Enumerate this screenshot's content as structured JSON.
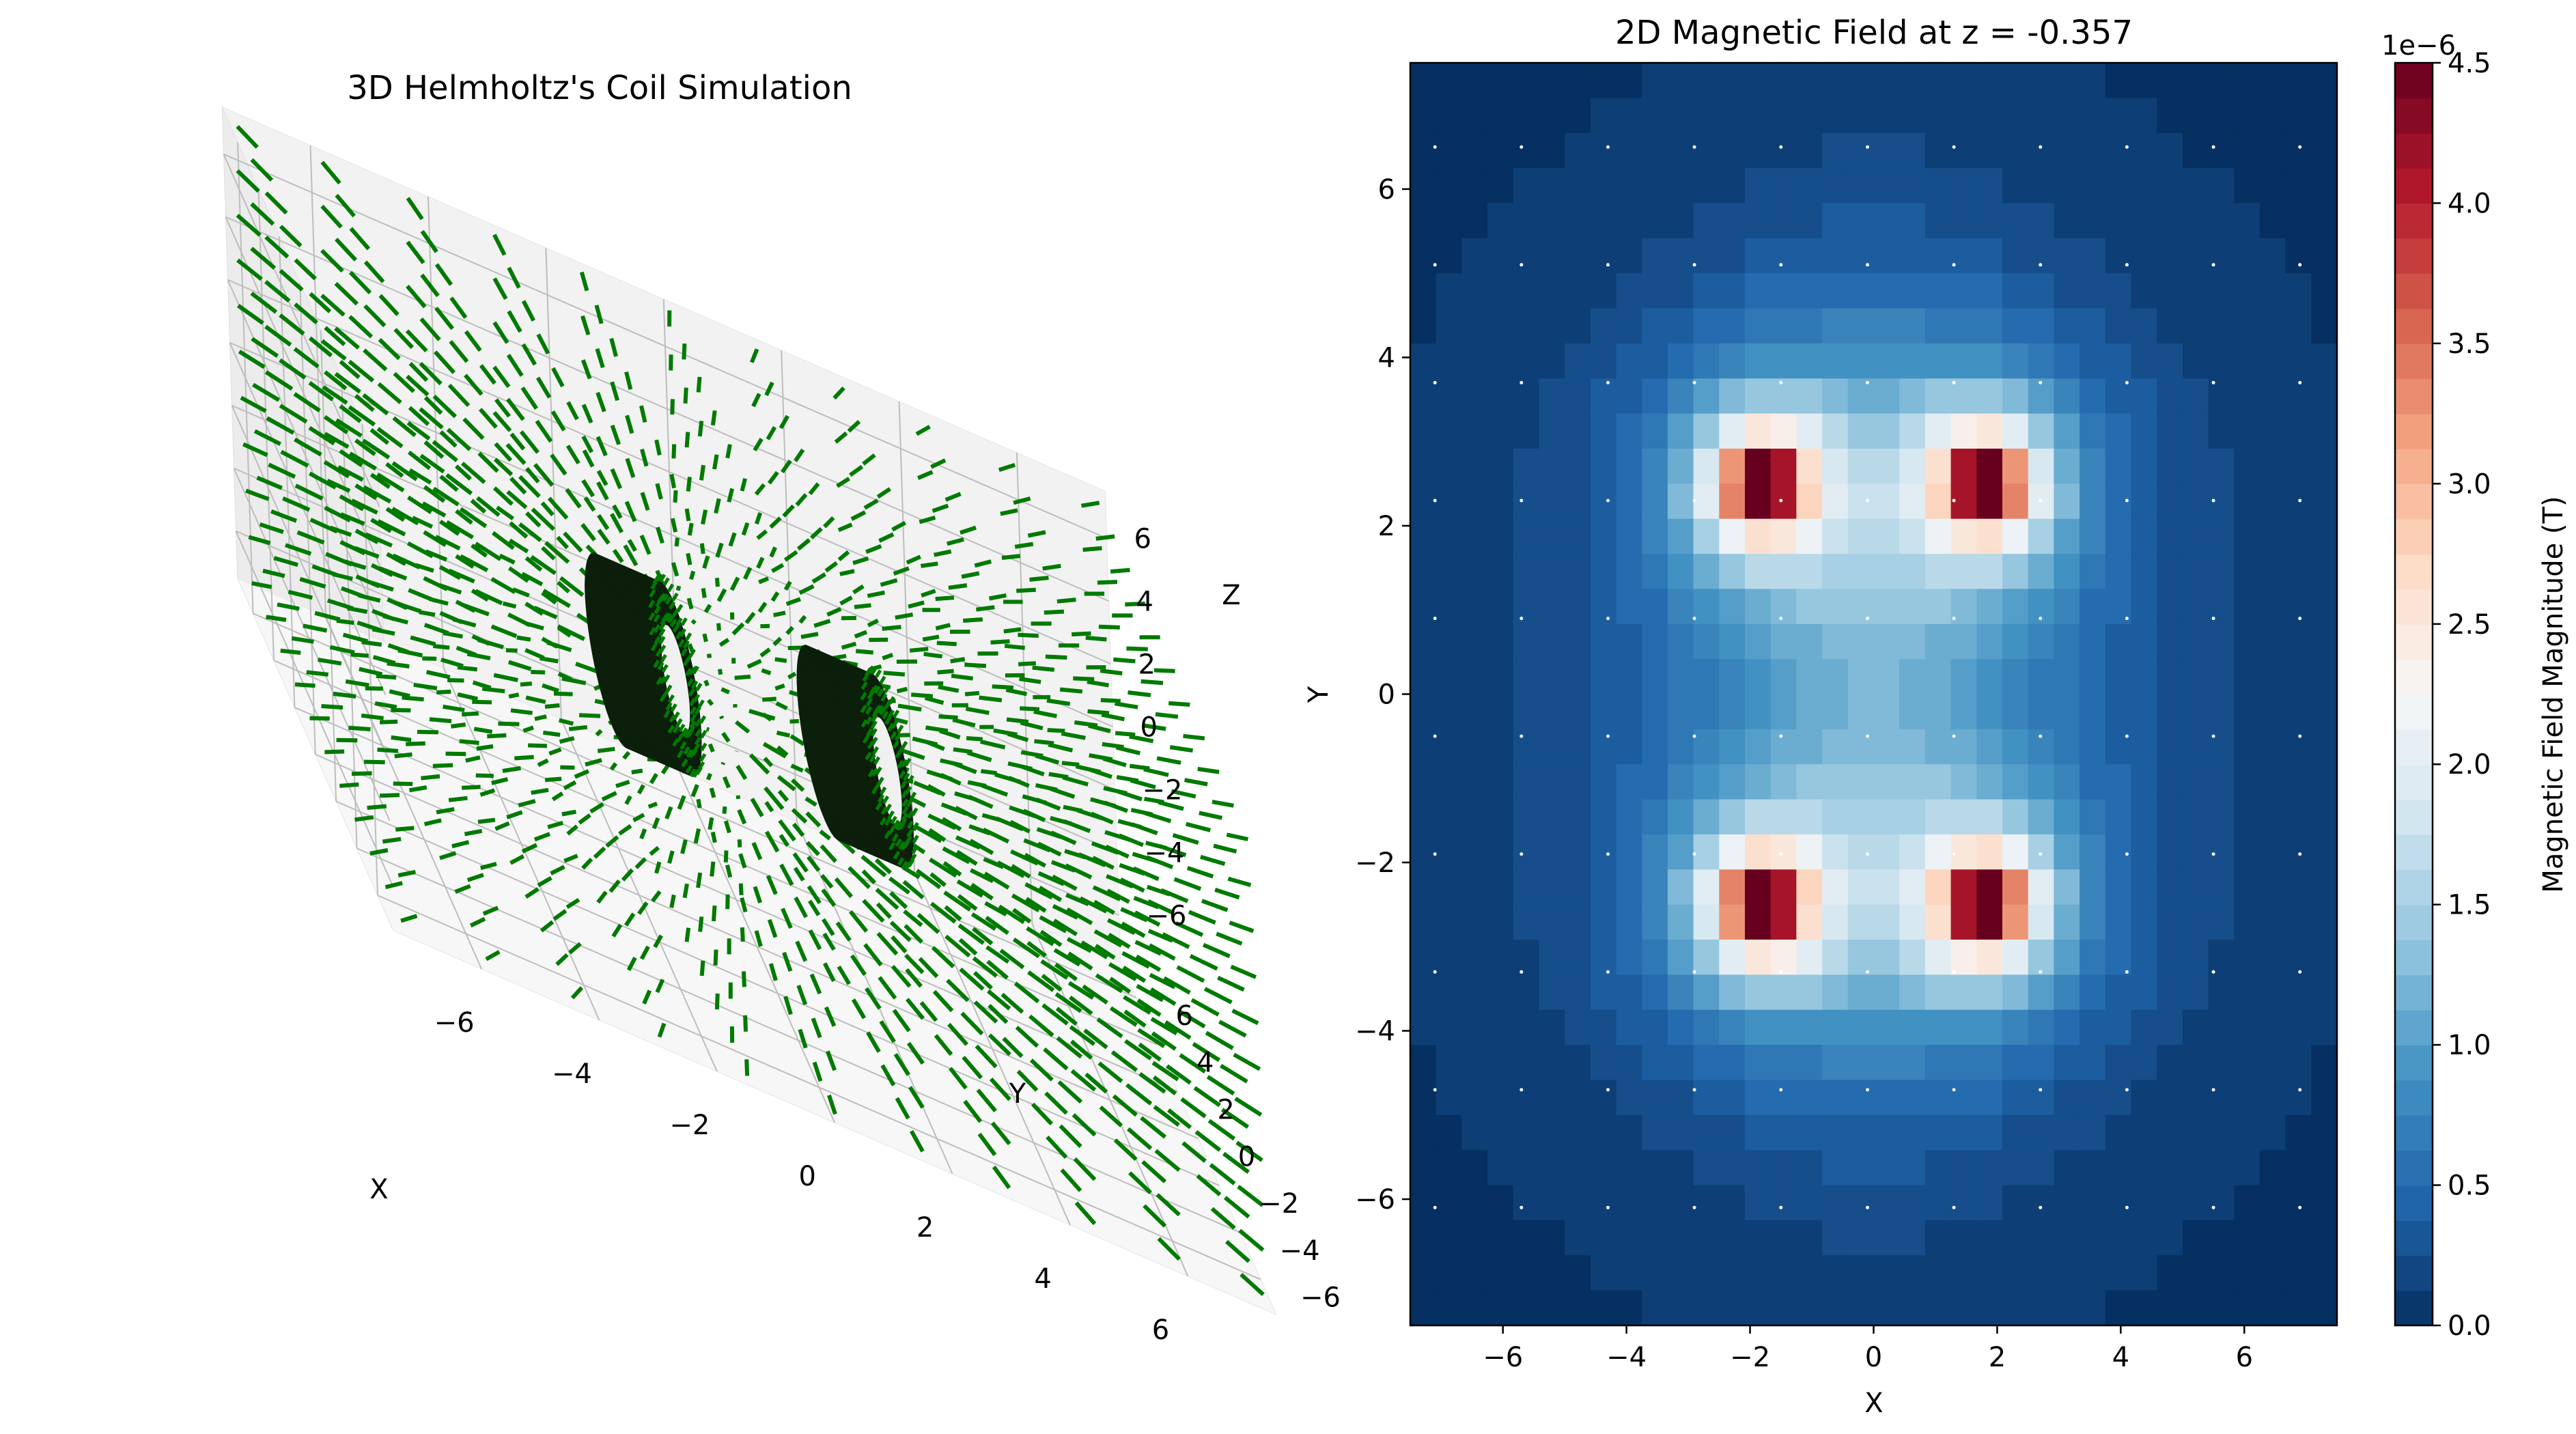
{
  "chart_data": [
    {
      "type": "quiver3d",
      "title": "3D Helmholtz's Coil Simulation",
      "xlabel": "X",
      "ylabel": "Y",
      "zlabel": "Z",
      "xlim": [
        -7.5,
        7.5
      ],
      "ylim": [
        -7.5,
        7.5
      ],
      "zlim": [
        -7.5,
        7.5
      ],
      "x_ticks": [
        -6,
        -4,
        -2,
        0,
        2,
        4,
        6
      ],
      "y_ticks": [
        -6,
        -4,
        -2,
        0,
        2,
        4,
        6
      ],
      "z_ticks": [
        -6,
        -4,
        -2,
        0,
        2,
        4,
        6
      ],
      "x_tick_labels": [
        "−6",
        "−4",
        "−2",
        "0",
        "2",
        "4",
        "6"
      ],
      "y_tick_labels": [
        "−6",
        "−4",
        "−2",
        "0",
        "2",
        "4",
        "6"
      ],
      "z_tick_labels": [
        "−6",
        "−4",
        "−2",
        "0",
        "2",
        "4",
        "6"
      ],
      "vector_color": "#007a00",
      "coil_color": "#0b1f0b",
      "pane_color": "#f2f2f2",
      "grid": true,
      "coils": [
        {
          "center_x": -1.8,
          "center_y": 0,
          "center_z": 0,
          "radius": 2.5,
          "axis": "x"
        },
        {
          "center_x": 1.8,
          "center_y": 0,
          "center_z": 0,
          "radius": 2.5,
          "axis": "x"
        }
      ]
    },
    {
      "type": "heatmap",
      "title": "2D Magnetic Field at z = -0.357",
      "xlabel": "X",
      "ylabel": "Y",
      "xlim": [
        -7.5,
        7.5
      ],
      "ylim": [
        -7.5,
        7.5
      ],
      "x_ticks": [
        -6,
        -4,
        -2,
        0,
        2,
        4,
        6
      ],
      "y_ticks": [
        -6,
        -4,
        -2,
        0,
        2,
        4,
        6
      ],
      "x_tick_labels": [
        "−6",
        "−4",
        "−2",
        "0",
        "2",
        "4",
        "6"
      ],
      "y_tick_labels": [
        "−6",
        "−4",
        "−2",
        "0",
        "2",
        "4",
        "6"
      ],
      "colormap": "RdBu",
      "field_peaks": [
        {
          "x": -1.8,
          "y": 2.5,
          "value": 4.5e-06
        },
        {
          "x": 1.8,
          "y": 2.5,
          "value": 4.5e-06
        },
        {
          "x": -1.8,
          "y": -2.5,
          "value": 4.5e-06
        },
        {
          "x": 1.8,
          "y": -2.5,
          "value": 4.5e-06
        }
      ],
      "center_value": 1.2e-06,
      "grid_dot_spacing": 1.4,
      "colorbar": {
        "label": "Magnetic Field Magnitude (T)",
        "offset_text": "1e−6",
        "min": 0.0,
        "max": 4.5,
        "ticks": [
          0.0,
          0.5,
          1.0,
          1.5,
          2.0,
          2.5,
          3.0,
          3.5,
          4.0,
          4.5
        ],
        "tick_labels": [
          "0.0",
          "0.5",
          "1.0",
          "1.5",
          "2.0",
          "2.5",
          "3.0",
          "3.5",
          "4.0",
          "4.5"
        ]
      }
    }
  ]
}
